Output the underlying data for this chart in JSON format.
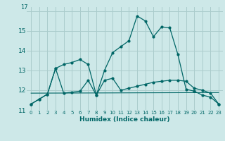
{
  "title": "",
  "xlabel": "Humidex (Indice chaleur)",
  "bg_color": "#cde8e8",
  "grid_color": "#aacccc",
  "line_color": "#006666",
  "xlim": [
    -0.5,
    23.5
  ],
  "ylim": [
    11.0,
    16.2
  ],
  "xticks": [
    0,
    1,
    2,
    3,
    4,
    5,
    6,
    7,
    8,
    9,
    10,
    11,
    12,
    13,
    14,
    15,
    16,
    17,
    18,
    19,
    20,
    21,
    22,
    23
  ],
  "yticks": [
    11,
    12,
    13,
    14,
    15,
    16
  ],
  "ytick_labels": [
    "11",
    "",
    "13",
    "14",
    "15",
    ""
  ],
  "line1_y": [
    11.3,
    11.55,
    11.8,
    13.1,
    13.3,
    13.4,
    13.55,
    13.3,
    11.75,
    13.0,
    13.9,
    14.2,
    14.5,
    15.75,
    15.5,
    14.7,
    15.2,
    15.15,
    13.8,
    12.05,
    11.95,
    11.75,
    11.65,
    11.3
  ],
  "line2_y": [
    11.3,
    11.55,
    11.8,
    13.1,
    11.85,
    11.9,
    11.95,
    12.5,
    11.75,
    12.5,
    12.6,
    12.0,
    12.1,
    12.2,
    12.3,
    12.4,
    12.45,
    12.5,
    12.5,
    12.45,
    12.1,
    12.0,
    11.85,
    11.3
  ],
  "line3_y": [
    11.85,
    11.88
  ]
}
